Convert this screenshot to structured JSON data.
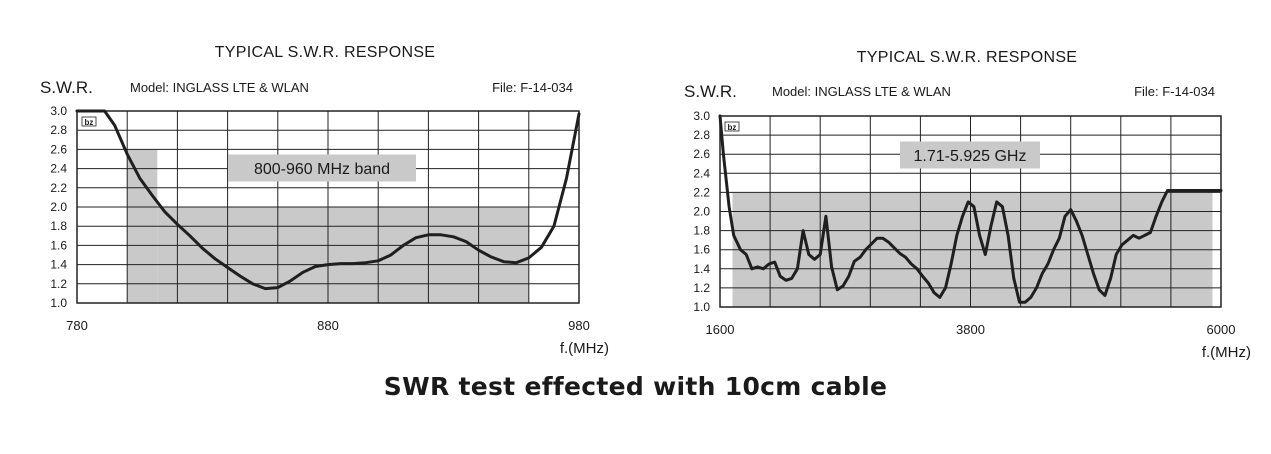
{
  "caption": "SWR test effected with 10cm cable",
  "colors": {
    "curve": "#1f1f1f",
    "band": "#c9c9c9",
    "grid": "#222222",
    "label_box": "#c9c9c9"
  },
  "chart_data": [
    {
      "type": "line",
      "title": "TYPICAL S.W.R. RESPONSE",
      "ylabel": "S.W.R.",
      "xlabel": "f.(MHz)",
      "model": "Model: INGLASS LTE & WLAN",
      "file": "File: F-14-034",
      "logo": "bz",
      "band_label": "800-960 MHz band",
      "xlim": [
        780,
        980
      ],
      "ylim": [
        1.0,
        3.0
      ],
      "x_tick_labels": [
        "780",
        "880",
        "980"
      ],
      "y_ticks": [
        "1.0",
        "1.2",
        "1.4",
        "1.6",
        "1.8",
        "2.0",
        "2.2",
        "2.4",
        "2.6",
        "2.8",
        "3.0"
      ],
      "grid": true,
      "bands": [
        {
          "x": [
            800,
            812
          ],
          "y_max": 2.6
        },
        {
          "x": [
            812,
            960
          ],
          "y_max": 2.0
        }
      ],
      "series": [
        {
          "x": [
            780,
            787,
            791,
            795,
            800,
            805,
            810,
            815,
            820,
            825,
            830,
            835,
            840,
            845,
            850,
            855,
            860,
            865,
            870,
            875,
            880,
            885,
            890,
            895,
            900,
            905,
            910,
            915,
            920,
            925,
            930,
            935,
            940,
            945,
            950,
            955,
            960,
            965,
            970,
            975,
            980
          ],
          "y": [
            3.0,
            3.0,
            3.0,
            2.85,
            2.55,
            2.3,
            2.12,
            1.95,
            1.82,
            1.7,
            1.57,
            1.46,
            1.37,
            1.28,
            1.2,
            1.15,
            1.16,
            1.23,
            1.32,
            1.38,
            1.4,
            1.41,
            1.41,
            1.42,
            1.44,
            1.5,
            1.6,
            1.68,
            1.71,
            1.71,
            1.69,
            1.64,
            1.55,
            1.48,
            1.43,
            1.42,
            1.47,
            1.58,
            1.8,
            2.3,
            2.97
          ]
        }
      ]
    },
    {
      "type": "line",
      "title": "TYPICAL S.W.R. RESPONSE",
      "ylabel": "S.W.R.",
      "xlabel": "f.(MHz)",
      "model": "Model: INGLASS LTE & WLAN",
      "file": "File: F-14-034",
      "logo": "bz",
      "band_label": "1.71-5.925 GHz",
      "xlim": [
        1600,
        6000
      ],
      "ylim": [
        1.0,
        3.0
      ],
      "x_tick_labels": [
        "1600",
        "3800",
        "6000"
      ],
      "y_ticks": [
        "1.0",
        "1.2",
        "1.4",
        "1.6",
        "1.8",
        "2.0",
        "2.2",
        "2.4",
        "2.6",
        "2.8",
        "3.0"
      ],
      "grid": true,
      "bands": [
        {
          "x": [
            1710,
            5925
          ],
          "y_max": 2.2
        }
      ],
      "series": [
        {
          "x": [
            1600,
            1630,
            1680,
            1720,
            1780,
            1830,
            1880,
            1930,
            1980,
            2030,
            2080,
            2130,
            2180,
            2230,
            2280,
            2330,
            2380,
            2430,
            2480,
            2530,
            2580,
            2630,
            2680,
            2730,
            2780,
            2830,
            2880,
            2930,
            2980,
            3030,
            3080,
            3130,
            3180,
            3230,
            3280,
            3330,
            3380,
            3430,
            3480,
            3530,
            3580,
            3630,
            3680,
            3730,
            3780,
            3830,
            3880,
            3930,
            3980,
            4030,
            4080,
            4130,
            4180,
            4230,
            4280,
            4330,
            4380,
            4430,
            4480,
            4530,
            4580,
            4630,
            4680,
            4730,
            4780,
            4830,
            4880,
            4930,
            4980,
            5030,
            5080,
            5130,
            5180,
            5230,
            5280,
            5330,
            5380,
            5430,
            5480,
            5530,
            5580,
            5630,
            5680,
            5730,
            5780,
            5830,
            5880,
            5930,
            5970,
            6000
          ],
          "y": [
            3.0,
            2.6,
            2.05,
            1.75,
            1.6,
            1.55,
            1.4,
            1.42,
            1.4,
            1.45,
            1.47,
            1.32,
            1.28,
            1.3,
            1.4,
            1.8,
            1.55,
            1.5,
            1.55,
            1.95,
            1.42,
            1.18,
            1.22,
            1.32,
            1.48,
            1.52,
            1.6,
            1.66,
            1.72,
            1.72,
            1.68,
            1.62,
            1.56,
            1.52,
            1.45,
            1.4,
            1.32,
            1.25,
            1.15,
            1.1,
            1.2,
            1.45,
            1.75,
            1.95,
            2.1,
            2.05,
            1.75,
            1.55,
            1.85,
            2.1,
            2.05,
            1.75,
            1.3,
            1.05,
            1.05,
            1.1,
            1.2,
            1.35,
            1.45,
            1.6,
            1.72,
            1.95,
            2.02,
            1.9,
            1.75,
            1.55,
            1.35,
            1.18,
            1.12,
            1.3,
            1.55,
            1.65,
            1.7,
            1.75,
            1.72,
            1.75,
            1.78,
            1.95,
            2.1,
            2.22,
            2.22,
            2.22,
            2.22,
            2.22,
            2.22,
            2.22,
            2.22,
            2.22,
            2.22,
            2.22
          ]
        }
      ]
    }
  ]
}
